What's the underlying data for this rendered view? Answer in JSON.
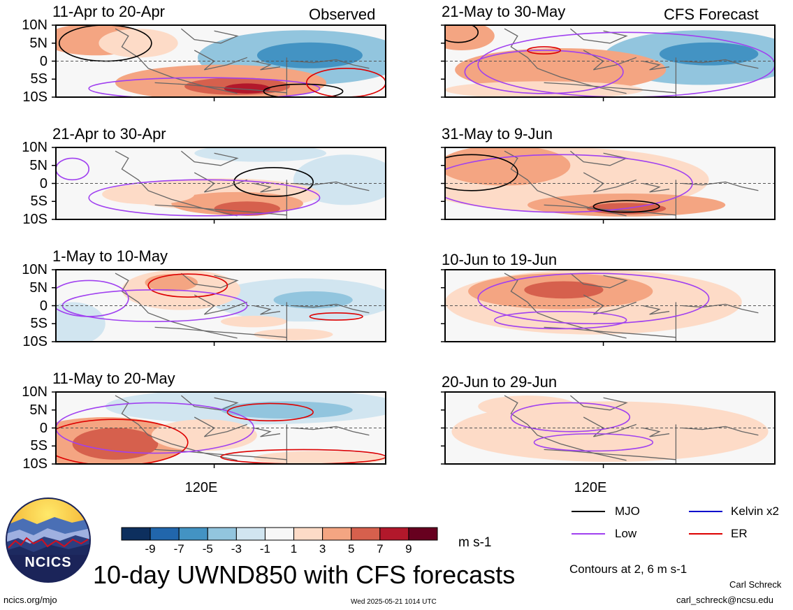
{
  "chart_data": {
    "type": "heatmap",
    "title": "10-day UWND850 with CFS forecasts",
    "variable_unit": "m s-1",
    "ytick_labels": [
      "10N",
      "5N",
      "0",
      "5S",
      "10S"
    ],
    "xtick_label": "120E",
    "colorbar": {
      "ticks": [
        "-9",
        "-7",
        "-5",
        "-3",
        "-1",
        "1",
        "3",
        "5",
        "7",
        "9"
      ],
      "colors": [
        "#0d2f5e",
        "#2166ac",
        "#4393c3",
        "#92c5de",
        "#d1e5f0",
        "#f7f7f7",
        "#fddbc7",
        "#f4a582",
        "#d6604d",
        "#b2182b",
        "#67001f"
      ]
    },
    "column_labels": {
      "left": "Observed",
      "right": "CFS Forecast"
    },
    "panels": [
      {
        "period": "11-Apr to 20-Apr",
        "source": "Observed"
      },
      {
        "period": "21-Apr to 30-Apr",
        "source": "Observed"
      },
      {
        "period": "1-May to 10-May",
        "source": "Observed"
      },
      {
        "period": "11-May to 20-May",
        "source": "Observed"
      },
      {
        "period": "21-May to 30-May",
        "source": "CFS Forecast"
      },
      {
        "period": "31-May to 9-Jun",
        "source": "CFS Forecast"
      },
      {
        "period": "10-Jun to 19-Jun",
        "source": "CFS Forecast"
      },
      {
        "period": "20-Jun to 29-Jun",
        "source": "CFS Forecast"
      }
    ],
    "legend": [
      {
        "label": "MJO",
        "color": "#000000"
      },
      {
        "label": "Kelvin x2",
        "color": "#0000cc"
      },
      {
        "label": "Low",
        "color": "#a040f0"
      },
      {
        "label": "ER",
        "color": "#dd0000"
      }
    ],
    "contour_note": "Contours at 2, 6 m s-1"
  },
  "footer": {
    "logo_text": "NCICS",
    "website": "ncics.org/mjo",
    "timestamp": "Wed 2025-05-21 1014 UTC",
    "author": "Carl Schreck",
    "email": "carl_schreck@ncsu.edu"
  }
}
